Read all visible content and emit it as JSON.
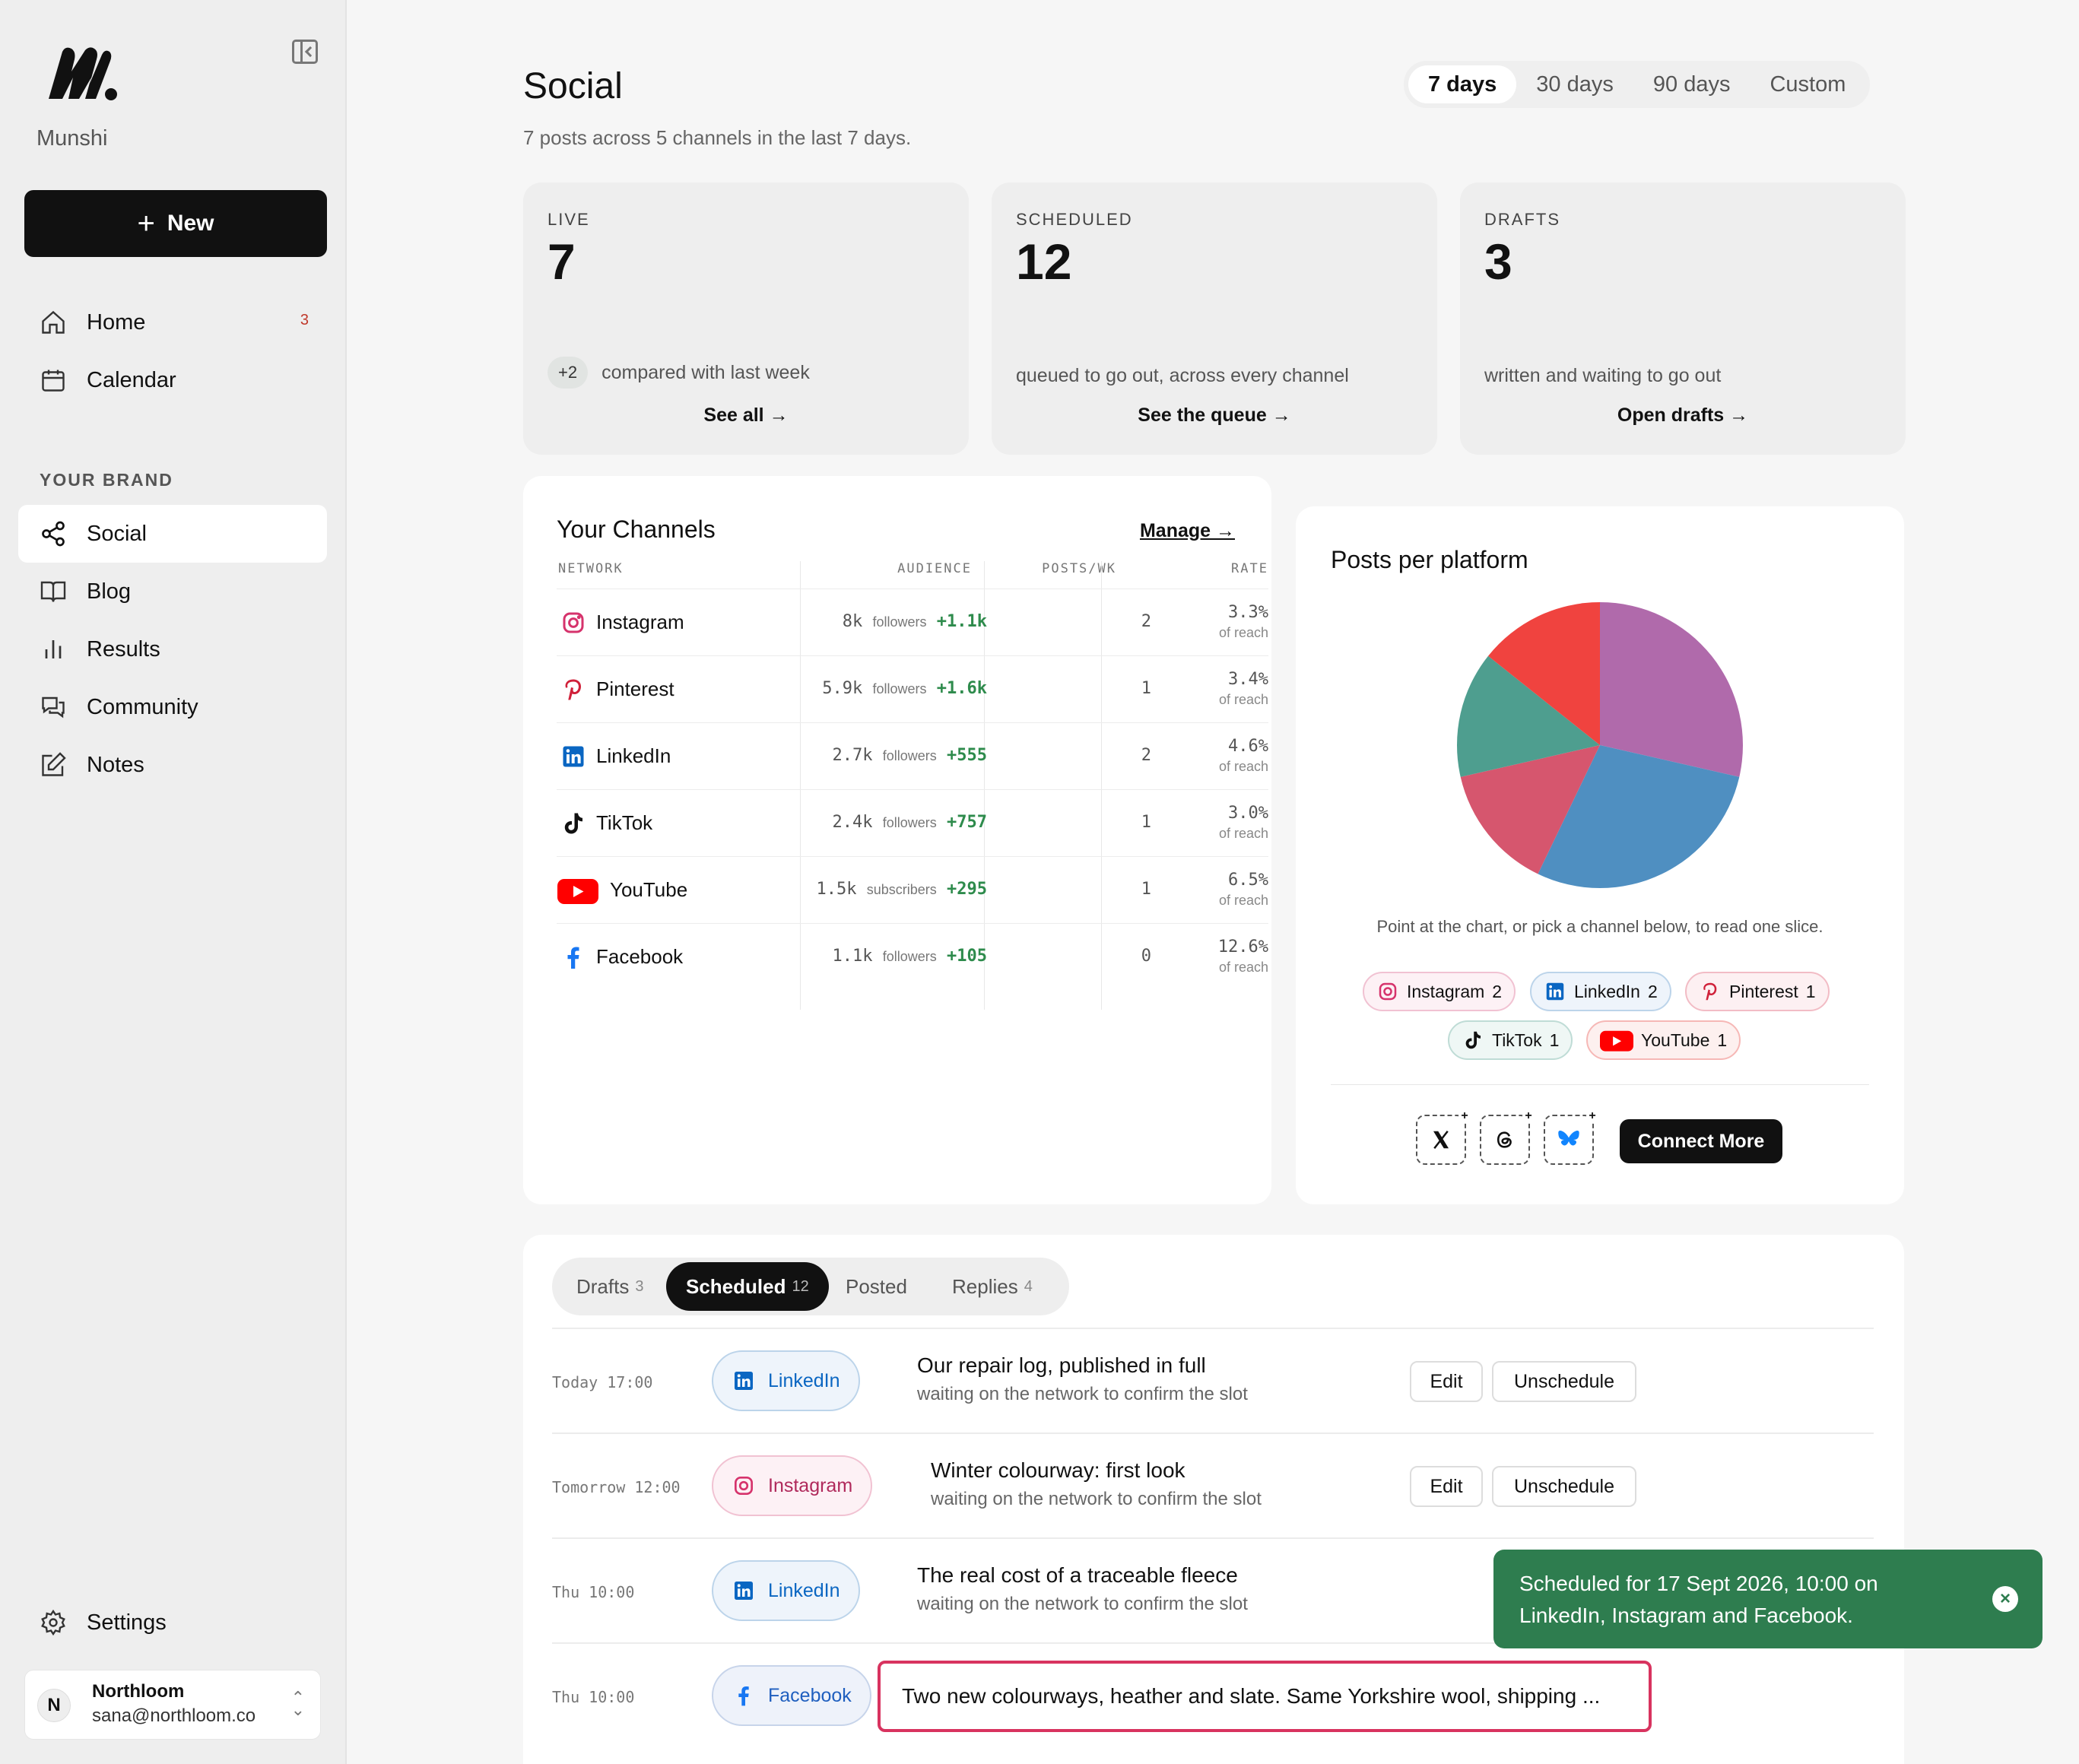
{
  "app": {
    "brand": "Munshi"
  },
  "sidebar": {
    "new_label": "New",
    "nav": [
      {
        "label": "Home",
        "badge": "3"
      },
      {
        "label": "Calendar"
      }
    ],
    "section_label": "YOUR BRAND",
    "brand_nav": [
      {
        "label": "Social"
      },
      {
        "label": "Blog"
      },
      {
        "label": "Results"
      },
      {
        "label": "Community"
      },
      {
        "label": "Notes"
      }
    ],
    "settings_label": "Settings",
    "account": {
      "initial": "N",
      "name": "Northloom",
      "email": "sana@northloom.co"
    }
  },
  "header": {
    "title": "Social",
    "subtitle": "7 posts across 5 channels in the last 7 days.",
    "ranges": [
      "7 days",
      "30 days",
      "90 days",
      "Custom"
    ],
    "active_range": "7 days"
  },
  "stats": [
    {
      "label": "LIVE",
      "value": "7",
      "delta": "+2",
      "desc": "compared with last week",
      "link": "See all →"
    },
    {
      "label": "SCHEDULED",
      "value": "12",
      "desc": "queued to go out, across every channel",
      "link": "See the queue →"
    },
    {
      "label": "DRAFTS",
      "value": "3",
      "desc": "written and waiting to go out",
      "link": "Open drafts →"
    }
  ],
  "channels": {
    "title": "Your Channels",
    "manage": "Manage →",
    "columns": [
      "NETWORK",
      "AUDIENCE",
      "POSTS/WK",
      "RATE"
    ],
    "rows": [
      {
        "name": "Instagram",
        "count": "8k",
        "unit": "followers",
        "gain": "+1.1k",
        "posts": "2",
        "rate": "3.3%",
        "rate_sub": "of reach",
        "icon": "instagram-icon"
      },
      {
        "name": "Pinterest",
        "count": "5.9k",
        "unit": "followers",
        "gain": "+1.6k",
        "posts": "1",
        "rate": "3.4%",
        "rate_sub": "of reach",
        "icon": "pinterest-icon"
      },
      {
        "name": "LinkedIn",
        "count": "2.7k",
        "unit": "followers",
        "gain": "+555",
        "posts": "2",
        "rate": "4.6%",
        "rate_sub": "of reach",
        "icon": "linkedin-icon"
      },
      {
        "name": "TikTok",
        "count": "2.4k",
        "unit": "followers",
        "gain": "+757",
        "posts": "1",
        "rate": "3.0%",
        "rate_sub": "of reach",
        "icon": "tiktok-icon"
      },
      {
        "name": "YouTube",
        "count": "1.5k",
        "unit": "subscribers",
        "gain": "+295",
        "posts": "1",
        "rate": "6.5%",
        "rate_sub": "of reach",
        "icon": "youtube-icon"
      },
      {
        "name": "Facebook",
        "count": "1.1k",
        "unit": "followers",
        "gain": "+105",
        "posts": "0",
        "rate": "12.6%",
        "rate_sub": "of reach",
        "icon": "facebook-icon"
      }
    ]
  },
  "chart_data": {
    "type": "pie",
    "title": "Posts per platform",
    "categories": [
      "Instagram",
      "LinkedIn",
      "Pinterest",
      "TikTok",
      "YouTube"
    ],
    "values": [
      2,
      2,
      1,
      1,
      1
    ],
    "colors": [
      "#b06aab",
      "#4f8fc1",
      "#d6566e",
      "#4e9e8f",
      "#f0433f"
    ],
    "hint": "Point at the chart, or pick a channel below, to read one slice.",
    "legend": [
      {
        "name": "Instagram",
        "count": "2"
      },
      {
        "name": "LinkedIn",
        "count": "2"
      },
      {
        "name": "Pinterest",
        "count": "1"
      },
      {
        "name": "TikTok",
        "count": "1"
      },
      {
        "name": "YouTube",
        "count": "1"
      }
    ]
  },
  "connect": {
    "label": "Connect More",
    "networks": [
      "x-icon",
      "threads-icon",
      "bluesky-icon"
    ]
  },
  "queue": {
    "tabs": [
      {
        "label": "Drafts",
        "count": "3"
      },
      {
        "label": "Scheduled",
        "count": "12"
      },
      {
        "label": "Posted",
        "count": ""
      },
      {
        "label": "Replies",
        "count": "4"
      }
    ],
    "active_tab": "Scheduled",
    "edit_label": "Edit",
    "unschedule_label": "Unschedule",
    "rows": [
      {
        "time": "Today 17:00",
        "network": "LinkedIn",
        "title": "Our repair log, published in full",
        "sub": "waiting on the network to confirm the slot"
      },
      {
        "time": "Tomorrow 12:00",
        "network": "Instagram",
        "title": "Winter colourway: first look",
        "sub": "waiting on the network to confirm the slot"
      },
      {
        "time": "Thu 10:00",
        "network": "LinkedIn",
        "title": "The real cost of a traceable fleece",
        "sub": "waiting on the network to confirm the slot"
      },
      {
        "time": "Thu 10:00",
        "network": "Facebook",
        "title": "Two new colourways, heather and slate. Same Yorkshire wool, shipping ...",
        "sub": ""
      }
    ]
  },
  "toast": {
    "message": "Scheduled for 17 Sept 2026, 10:00 on LinkedIn, Instagram and Facebook.",
    "close": "×"
  }
}
